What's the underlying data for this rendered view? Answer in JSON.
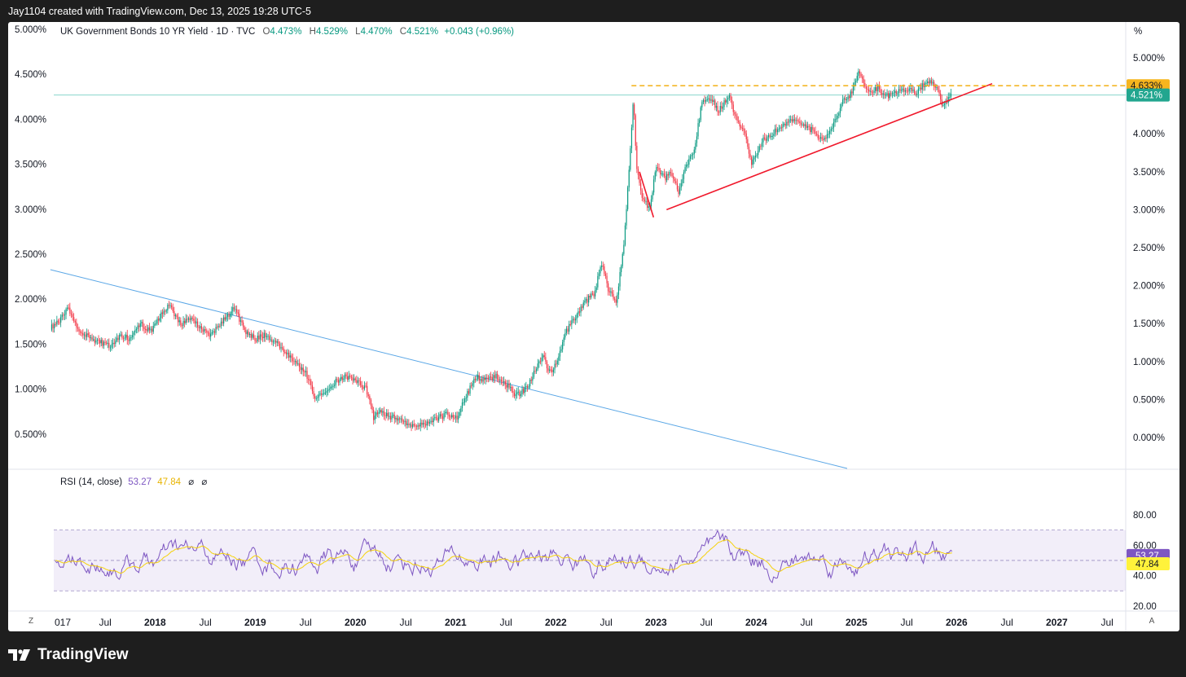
{
  "header": {
    "credit": "Jay1104 created with TradingView.com, Dec 13, 2025 19:28 UTC-5"
  },
  "legend": {
    "title": "UK Government Bonds 10 YR Yield · 1D · TVC",
    "o_label": "O",
    "o_value": "4.473%",
    "h_label": "H",
    "h_value": "4.529%",
    "l_label": "L",
    "l_value": "4.470%",
    "c_label": "C",
    "c_value": "4.521%",
    "change": "+0.043 (+0.96%)"
  },
  "rsi_legend": {
    "title": "RSI (14, close)",
    "rsi_value": "53.27",
    "ma_value": "47.84",
    "icon1": "⌀",
    "icon2": "⌀"
  },
  "right_axis_unit": "%",
  "footer": {
    "brand": "TradingView"
  },
  "corners": {
    "left": "Z",
    "right": "A"
  },
  "colors": {
    "up": "#089981",
    "down": "#f23645",
    "rsi": "#7e57c2",
    "rsi_ma": "#f5d20a",
    "trend_red": "#f0192c",
    "trend_blue": "#5ba7e6",
    "dash_orange": "#f2a900"
  },
  "chart_data": {
    "type": "candlestick",
    "title": "UK Government Bonds 10 YR Yield · 1D · TVC",
    "x_ticks": [
      "017",
      "Jul",
      "2018",
      "Jul",
      "2019",
      "Jul",
      "2020",
      "Jul",
      "2021",
      "Jul",
      "2022",
      "Jul",
      "2023",
      "Jul",
      "2024",
      "Jul",
      "2025",
      "Jul",
      "2026",
      "Jul",
      "2027",
      "Jul"
    ],
    "left_y_ticks": [
      "5.000%",
      "4.500%",
      "4.000%",
      "3.500%",
      "3.000%",
      "2.500%",
      "2.000%",
      "1.500%",
      "1.000%",
      "0.500%"
    ],
    "right_y_ticks": [
      "5.000%",
      "4.500%",
      "4.000%",
      "3.500%",
      "3.000%",
      "2.500%",
      "2.000%",
      "1.500%",
      "1.000%",
      "0.500%",
      "0.000%"
    ],
    "price_path": [
      [
        2016.95,
        1.45
      ],
      [
        2017.05,
        1.55
      ],
      [
        2017.13,
        1.7
      ],
      [
        2017.22,
        1.45
      ],
      [
        2017.3,
        1.35
      ],
      [
        2017.45,
        1.25
      ],
      [
        2017.55,
        1.2
      ],
      [
        2017.65,
        1.35
      ],
      [
        2017.75,
        1.3
      ],
      [
        2017.85,
        1.5
      ],
      [
        2017.95,
        1.4
      ],
      [
        2018.05,
        1.6
      ],
      [
        2018.13,
        1.75
      ],
      [
        2018.25,
        1.5
      ],
      [
        2018.35,
        1.55
      ],
      [
        2018.45,
        1.45
      ],
      [
        2018.55,
        1.35
      ],
      [
        2018.65,
        1.5
      ],
      [
        2018.78,
        1.7
      ],
      [
        2018.9,
        1.4
      ],
      [
        2019.0,
        1.3
      ],
      [
        2019.1,
        1.35
      ],
      [
        2019.2,
        1.25
      ],
      [
        2019.3,
        1.1
      ],
      [
        2019.4,
        1.0
      ],
      [
        2019.5,
        0.85
      ],
      [
        2019.6,
        0.5
      ],
      [
        2019.7,
        0.6
      ],
      [
        2019.8,
        0.75
      ],
      [
        2019.9,
        0.8
      ],
      [
        2020.0,
        0.75
      ],
      [
        2020.1,
        0.65
      ],
      [
        2020.18,
        0.25
      ],
      [
        2020.22,
        0.35
      ],
      [
        2020.3,
        0.3
      ],
      [
        2020.4,
        0.25
      ],
      [
        2020.5,
        0.2
      ],
      [
        2020.6,
        0.15
      ],
      [
        2020.7,
        0.2
      ],
      [
        2020.8,
        0.25
      ],
      [
        2020.9,
        0.3
      ],
      [
        2021.0,
        0.25
      ],
      [
        2021.1,
        0.55
      ],
      [
        2021.2,
        0.8
      ],
      [
        2021.3,
        0.75
      ],
      [
        2021.4,
        0.8
      ],
      [
        2021.5,
        0.7
      ],
      [
        2021.6,
        0.55
      ],
      [
        2021.7,
        0.65
      ],
      [
        2021.8,
        0.9
      ],
      [
        2021.87,
        1.1
      ],
      [
        2021.92,
        0.85
      ],
      [
        2022.0,
        0.95
      ],
      [
        2022.1,
        1.4
      ],
      [
        2022.2,
        1.6
      ],
      [
        2022.3,
        1.8
      ],
      [
        2022.38,
        1.9
      ],
      [
        2022.45,
        2.3
      ],
      [
        2022.52,
        1.95
      ],
      [
        2022.6,
        1.8
      ],
      [
        2022.67,
        2.5
      ],
      [
        2022.73,
        3.6
      ],
      [
        2022.77,
        4.5
      ],
      [
        2022.8,
        3.6
      ],
      [
        2022.85,
        3.2
      ],
      [
        2022.93,
        3.0
      ],
      [
        2023.0,
        3.6
      ],
      [
        2023.08,
        3.4
      ],
      [
        2023.15,
        3.5
      ],
      [
        2023.22,
        3.2
      ],
      [
        2023.3,
        3.6
      ],
      [
        2023.38,
        3.8
      ],
      [
        2023.45,
        4.4
      ],
      [
        2023.55,
        4.45
      ],
      [
        2023.62,
        4.3
      ],
      [
        2023.72,
        4.5
      ],
      [
        2023.8,
        4.2
      ],
      [
        2023.88,
        4.0
      ],
      [
        2023.95,
        3.6
      ],
      [
        2024.05,
        3.9
      ],
      [
        2024.15,
        4.0
      ],
      [
        2024.25,
        4.1
      ],
      [
        2024.35,
        4.2
      ],
      [
        2024.45,
        4.1
      ],
      [
        2024.55,
        4.05
      ],
      [
        2024.65,
        3.9
      ],
      [
        2024.75,
        4.05
      ],
      [
        2024.85,
        4.4
      ],
      [
        2024.95,
        4.55
      ],
      [
        2025.02,
        4.85
      ],
      [
        2025.1,
        4.55
      ],
      [
        2025.2,
        4.6
      ],
      [
        2025.3,
        4.5
      ],
      [
        2025.4,
        4.55
      ],
      [
        2025.5,
        4.6
      ],
      [
        2025.6,
        4.55
      ],
      [
        2025.7,
        4.7
      ],
      [
        2025.78,
        4.65
      ],
      [
        2025.85,
        4.4
      ],
      [
        2025.9,
        4.45
      ],
      [
        2025.95,
        4.52
      ]
    ],
    "horizontal_level_yield": 4.633,
    "last_yield": 4.521,
    "trendlines": [
      {
        "color": "red",
        "from": [
          2023.1,
          3.0
        ],
        "to": [
          2026.35,
          4.66
        ]
      },
      {
        "color": "red",
        "from": [
          2022.83,
          3.5
        ],
        "to": [
          2022.97,
          2.9
        ]
      },
      {
        "color": "blue",
        "from": [
          2016.95,
          2.35
        ],
        "to": [
          2024.8,
          0.22
        ]
      }
    ],
    "rsi": {
      "label": "RSI (14, close)",
      "period": 14,
      "last": 53.27,
      "ma_last": 47.84,
      "upper_band": 70,
      "lower_band": 30,
      "y_ticks": [
        "80.00",
        "60.00",
        "40.00",
        "20.00"
      ]
    },
    "price_labels": {
      "level": "4.633%",
      "last": "4.521%"
    },
    "rsi_labels": {
      "rsi": "53.27",
      "ma": "47.84"
    }
  }
}
